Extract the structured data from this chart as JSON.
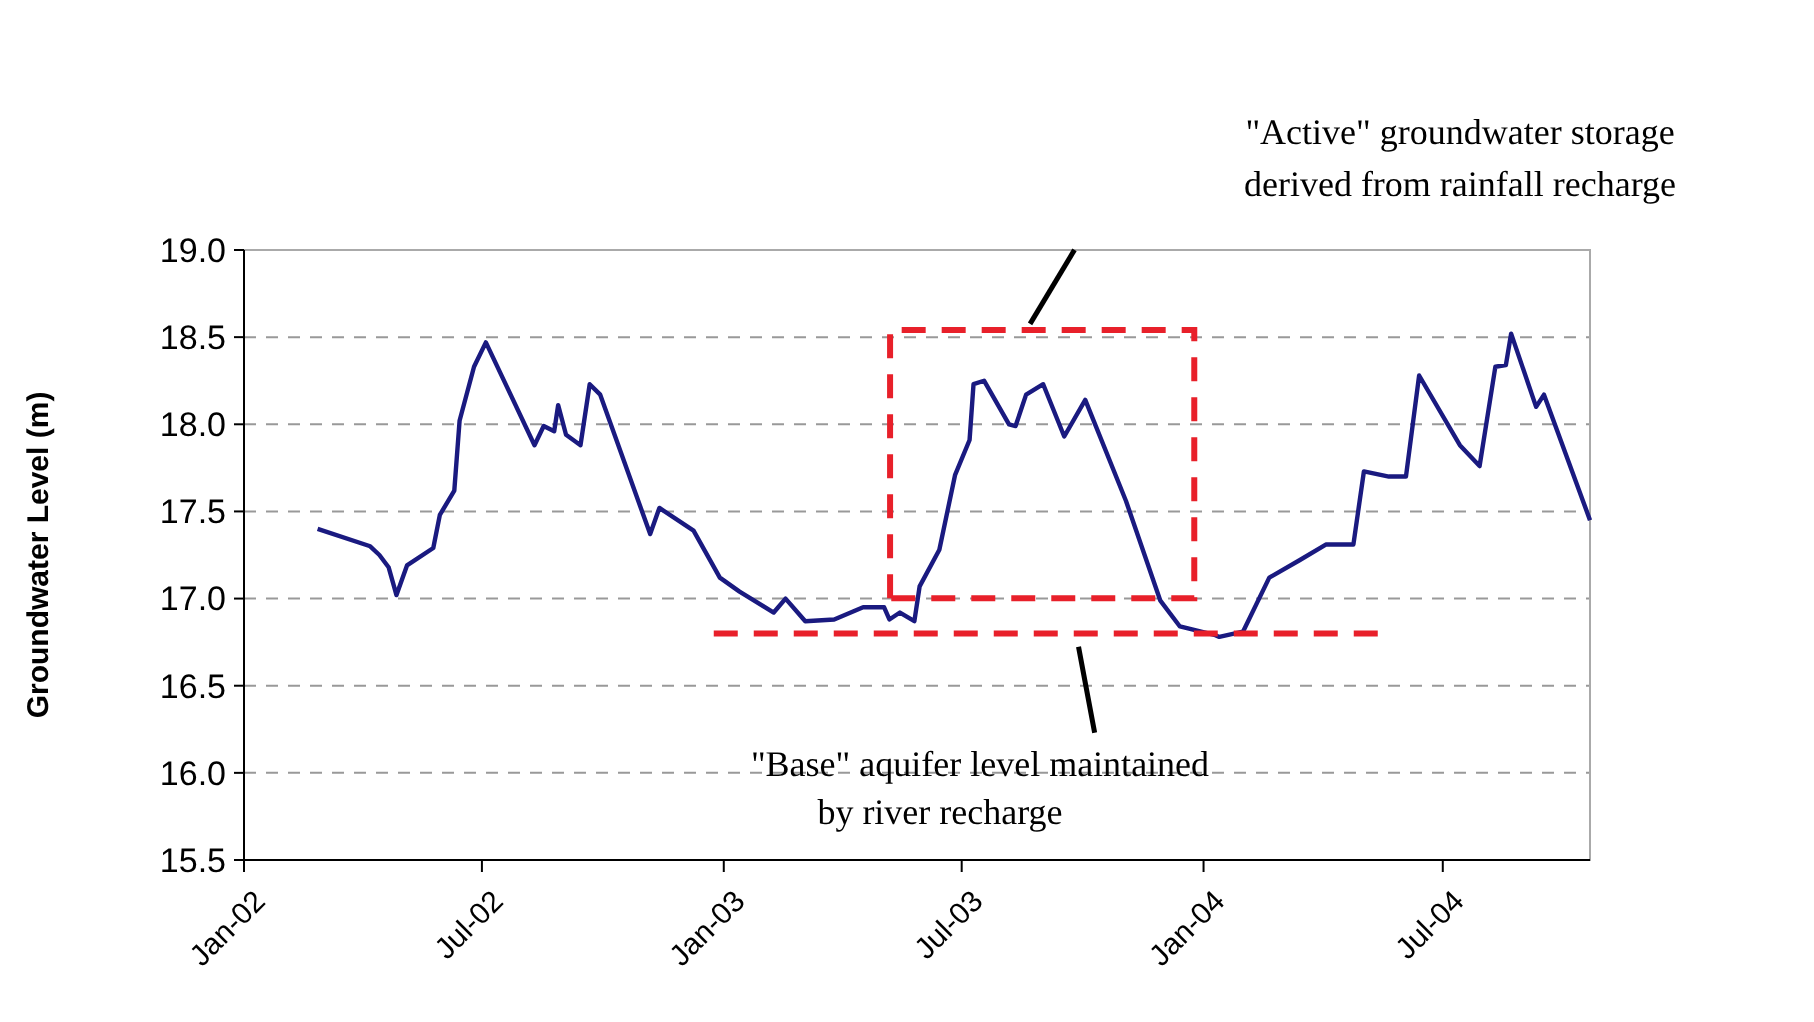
{
  "chart_data": {
    "type": "line",
    "ylabel": "Groundwater Level (m)",
    "x": [
      "2002-02-26",
      "2002-04-07",
      "2002-04-14",
      "2002-04-21",
      "2002-04-27",
      "2002-05-05",
      "2002-05-25",
      "2002-05-30",
      "2002-06-10",
      "2002-06-14",
      "2002-06-25",
      "2002-07-04",
      "2002-08-10",
      "2002-08-17",
      "2002-08-25",
      "2002-08-28",
      "2002-09-03",
      "2002-09-14",
      "2002-09-21",
      "2002-09-29",
      "2002-11-06",
      "2002-11-13",
      "2002-12-09",
      "2002-12-29",
      "2003-01-13",
      "2003-02-08",
      "2003-02-17",
      "2003-03-04",
      "2003-03-26",
      "2003-04-17",
      "2003-05-03",
      "2003-05-07",
      "2003-05-15",
      "2003-05-26",
      "2003-05-30",
      "2003-06-14",
      "2003-06-26",
      "2003-07-07",
      "2003-07-10",
      "2003-07-18",
      "2003-08-06",
      "2003-08-11",
      "2003-08-19",
      "2003-09-01",
      "2003-09-17",
      "2003-10-03",
      "2003-11-03",
      "2003-11-29",
      "2003-12-14",
      "2004-01-10",
      "2004-01-13",
      "2004-01-31",
      "2004-02-20",
      "2004-03-14",
      "2004-04-03",
      "2004-04-24",
      "2004-05-02",
      "2004-05-21",
      "2004-06-03",
      "2004-06-13",
      "2004-07-14",
      "2004-07-29",
      "2004-08-10",
      "2004-08-18",
      "2004-08-22",
      "2004-09-10",
      "2004-09-16",
      "2004-10-21"
    ],
    "series": [
      {
        "color": "#1a1a80",
        "values": [
          17.4,
          17.3,
          17.25,
          17.18,
          17.02,
          17.19,
          17.29,
          17.48,
          17.62,
          18.02,
          18.33,
          18.47,
          17.88,
          17.99,
          17.96,
          18.11,
          17.94,
          17.88,
          18.23,
          18.17,
          17.37,
          17.52,
          17.39,
          17.12,
          17.04,
          16.92,
          17.0,
          16.87,
          16.88,
          16.95,
          16.95,
          16.88,
          16.92,
          16.87,
          17.07,
          17.28,
          17.71,
          17.91,
          18.23,
          18.25,
          18.0,
          17.99,
          18.17,
          18.23,
          17.93,
          18.14,
          17.56,
          16.99,
          16.84,
          16.79,
          16.78,
          16.81,
          17.12,
          17.22,
          17.31,
          17.31,
          17.73,
          17.7,
          17.7,
          18.28,
          17.88,
          17.76,
          18.33,
          18.34,
          18.52,
          18.1,
          18.17,
          17.45
        ]
      }
    ],
    "xlim": [
      "2002-01-01",
      "2004-10-21"
    ],
    "xticks": [
      {
        "value": "2002-01-01",
        "label": "Jan-02"
      },
      {
        "value": "2002-07-01",
        "label": "Jul-02"
      },
      {
        "value": "2003-01-01",
        "label": "Jan-03"
      },
      {
        "value": "2003-07-01",
        "label": "Jul-03"
      },
      {
        "value": "2004-01-01",
        "label": "Jan-04"
      },
      {
        "value": "2004-07-01",
        "label": "Jul-04"
      }
    ],
    "ylim": [
      15.5,
      19.0
    ],
    "yticks": [
      {
        "value": 15.5,
        "label": "15.5"
      },
      {
        "value": 16,
        "label": "16.0"
      },
      {
        "value": 16.5,
        "label": "16.5"
      },
      {
        "value": 17,
        "label": "17.0"
      },
      {
        "value": 17.5,
        "label": "17.5"
      },
      {
        "value": 18,
        "label": "18.0"
      },
      {
        "value": 18.5,
        "label": "18.5"
      },
      {
        "value": 19,
        "label": "19.0"
      }
    ],
    "grid": "y",
    "legend": false,
    "ref_lines": [
      {
        "axis": "y",
        "value": 16.8,
        "color": "#e8202a",
        "line_style": "dashed"
      }
    ],
    "marker": "none",
    "line_style": "solid",
    "annotations": [
      "\"Active\" groundwater storage derived from rainfall recharge",
      "\"Base\" aquifer level maintained by river recharge"
    ]
  }
}
